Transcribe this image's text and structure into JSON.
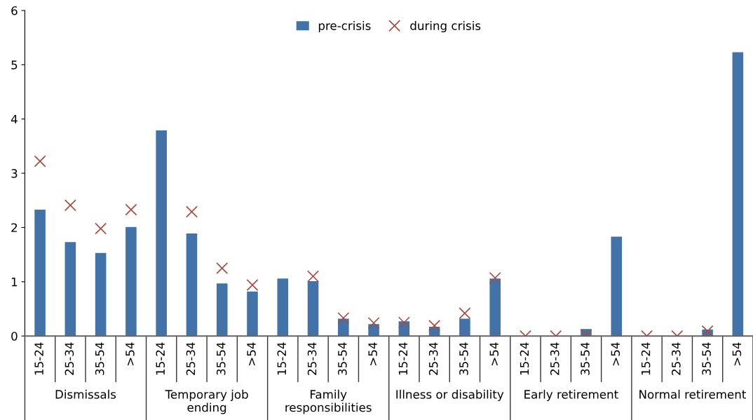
{
  "chart_data": {
    "type": "bar",
    "categories": [
      "15-24",
      "25-34",
      "35-54",
      ">54",
      "15-24",
      "25-34",
      "35-54",
      ">54",
      "15-24",
      "25-34",
      "35-54",
      ">54",
      "15-24",
      "25-34",
      "35-54",
      ">54",
      "15-24",
      "25-34",
      "35-54",
      ">54",
      "15-24",
      "25-34",
      "35-54",
      ">54"
    ],
    "series": [
      {
        "name": "pre-crisis",
        "color": "#4273a8",
        "values": [
          2.33,
          1.73,
          1.53,
          2.01,
          3.79,
          1.89,
          0.97,
          0.82,
          1.06,
          1.01,
          0.32,
          0.22,
          0.27,
          0.17,
          0.32,
          1.06,
          0,
          0,
          0.13,
          1.83,
          0,
          0,
          0.12,
          5.23
        ]
      },
      {
        "name": "during crisis",
        "type": "scatter",
        "color": "#a84c3e",
        "values": [
          3.22,
          2.41,
          1.98,
          2.33,
          null,
          2.29,
          1.25,
          0.94,
          null,
          1.1,
          0.33,
          0.24,
          0.25,
          0.19,
          0.42,
          1.07,
          0,
          0,
          0.02,
          null,
          0,
          0,
          0.09,
          null
        ]
      }
    ],
    "annotations": [
      "Dismissals",
      "Temporary job\nending",
      "Family\nresponsibilities",
      "Illness or disability",
      "Early retirement",
      "Normal retirement"
    ],
    "ylim": [
      0,
      6
    ],
    "yticks": [
      0,
      1,
      2,
      3,
      4,
      5,
      6
    ],
    "marker": "cross",
    "legend": "top",
    "grid": false
  }
}
